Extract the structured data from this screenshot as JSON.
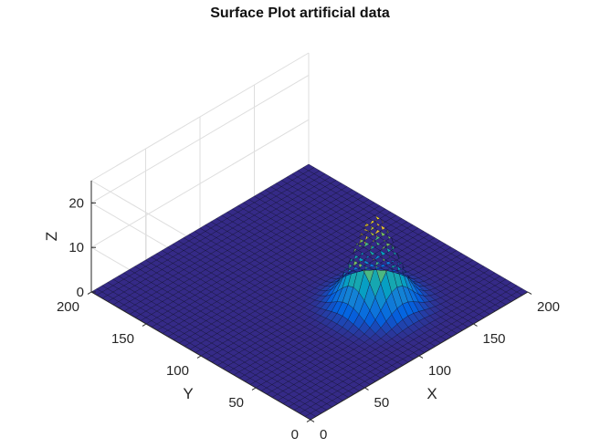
{
  "chart_data": {
    "type": "surface",
    "title": "Surface Plot artificial data",
    "xlabel": "X",
    "ylabel": "Y",
    "zlabel": "Z",
    "xlim": [
      0,
      200
    ],
    "ylim": [
      0,
      200
    ],
    "zlim": [
      0,
      25
    ],
    "x_ticks": [
      "0",
      "50",
      "100",
      "150",
      "200"
    ],
    "y_ticks": [
      "0",
      "50",
      "100",
      "150",
      "200"
    ],
    "z_ticks": [
      "0",
      "10",
      "20"
    ],
    "grid": true,
    "colormap": "parula",
    "surface": {
      "baseline_z": 0,
      "peak": {
        "x": 120,
        "y": 60,
        "z": 20
      },
      "peak_radius": 30
    }
  }
}
